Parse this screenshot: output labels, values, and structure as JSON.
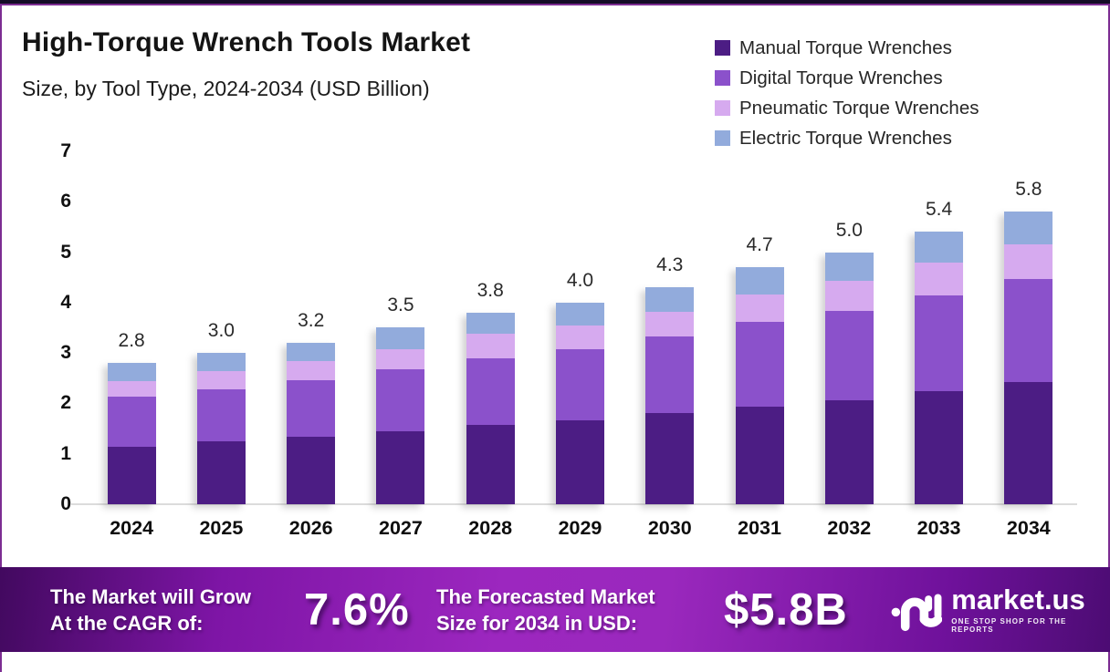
{
  "header": {
    "title": "High-Torque Wrench Tools Market",
    "subtitle": "Size, by Tool Type, 2024-2034 (USD Billion)"
  },
  "legend": {
    "items": [
      {
        "key": "manual",
        "label": "Manual Torque Wrenches",
        "color": "#4C1D84"
      },
      {
        "key": "digital",
        "label": "Digital Torque Wrenches",
        "color": "#8B51CB"
      },
      {
        "key": "pneumatic",
        "label": "Pneumatic Torque Wrenches",
        "color": "#D6AAEF"
      },
      {
        "key": "electric",
        "label": "Electric Torque Wrenches",
        "color": "#92ABDC"
      }
    ]
  },
  "chart_data": {
    "type": "bar",
    "stacked": true,
    "title": "High-Torque Wrench Tools Market Size, by Tool Type, 2024-2034 (USD Billion)",
    "categories": [
      "2024",
      "2025",
      "2026",
      "2027",
      "2028",
      "2029",
      "2030",
      "2031",
      "2032",
      "2033",
      "2034"
    ],
    "series": [
      {
        "key": "manual",
        "name": "Manual Torque Wrenches",
        "color": "#4C1D84",
        "values": [
          1.14,
          1.24,
          1.33,
          1.45,
          1.57,
          1.66,
          1.8,
          1.94,
          2.07,
          2.24,
          2.42
        ]
      },
      {
        "key": "digital",
        "name": "Digital Torque Wrenches",
        "color": "#8B51CB",
        "values": [
          1.0,
          1.04,
          1.13,
          1.22,
          1.33,
          1.42,
          1.52,
          1.67,
          1.76,
          1.9,
          2.05
        ]
      },
      {
        "key": "pneumatic",
        "name": "Pneumatic Torque Wrenches",
        "color": "#D6AAEF",
        "values": [
          0.31,
          0.36,
          0.38,
          0.41,
          0.49,
          0.47,
          0.5,
          0.55,
          0.6,
          0.66,
          0.68
        ]
      },
      {
        "key": "electric",
        "name": "Electric Torque Wrenches",
        "color": "#92ABDC",
        "values": [
          0.35,
          0.36,
          0.36,
          0.42,
          0.41,
          0.45,
          0.48,
          0.54,
          0.57,
          0.6,
          0.65
        ]
      }
    ],
    "totals": [
      2.8,
      3.0,
      3.2,
      3.5,
      3.8,
      4.0,
      4.3,
      4.7,
      5.0,
      5.4,
      5.8
    ],
    "total_labels": [
      "2.8",
      "3.0",
      "3.2",
      "3.5",
      "3.8",
      "4.0",
      "4.3",
      "4.7",
      "5.0",
      "5.4",
      "5.8"
    ],
    "xlabel": "",
    "ylabel": "",
    "ylim": [
      0,
      7
    ],
    "yticks": [
      0,
      1,
      2,
      3,
      4,
      5,
      6,
      7
    ],
    "grid": false,
    "legend_position": "top-right"
  },
  "banner": {
    "cagr_label": [
      "The Market will Grow",
      "At the CAGR of:"
    ],
    "cagr_value": "7.6%",
    "forecast_label": [
      "The Forecasted Market",
      "Size for 2034 in USD:"
    ],
    "forecast_value": "$5.8B",
    "brand": {
      "name": "market.us",
      "tagline": "ONE STOP SHOP FOR THE REPORTS"
    }
  }
}
